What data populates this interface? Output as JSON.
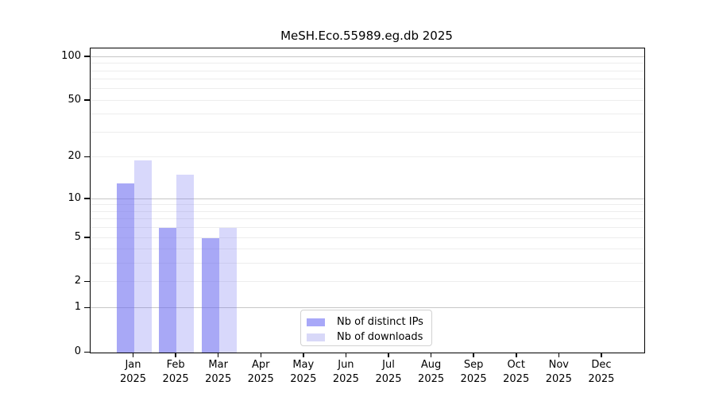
{
  "chart_data": {
    "type": "bar",
    "title": "MeSH.Eco.55989.eg.db 2025",
    "categories": [
      "Jan",
      "Feb",
      "Mar",
      "Apr",
      "May",
      "Jun",
      "Jul",
      "Aug",
      "Sep",
      "Oct",
      "Nov",
      "Dec"
    ],
    "year_label": "2025",
    "series": [
      {
        "name": "Nb of distinct IPs",
        "color": "#a8a8f8",
        "fill": "rgba(110,110,240,0.60)",
        "values": [
          13,
          6,
          5,
          0,
          0,
          0,
          0,
          0,
          0,
          0,
          0,
          0
        ]
      },
      {
        "name": "Nb of downloads",
        "color": "#d8d8f8",
        "fill": "rgba(110,110,240,0.27)",
        "values": [
          19,
          15,
          6,
          0,
          0,
          0,
          0,
          0,
          0,
          0,
          0,
          0
        ]
      }
    ],
    "yscale": "log1p",
    "ylim": [
      0,
      115
    ],
    "yticks": [
      0,
      1,
      2,
      5,
      10,
      20,
      50,
      100
    ],
    "grid_major": [
      1,
      10,
      100
    ],
    "grid_minor": [
      2,
      3,
      4,
      5,
      6,
      7,
      8,
      9,
      20,
      30,
      40,
      50,
      60,
      70,
      80,
      90
    ],
    "grid": "on",
    "legend_position": "bottom-center"
  }
}
